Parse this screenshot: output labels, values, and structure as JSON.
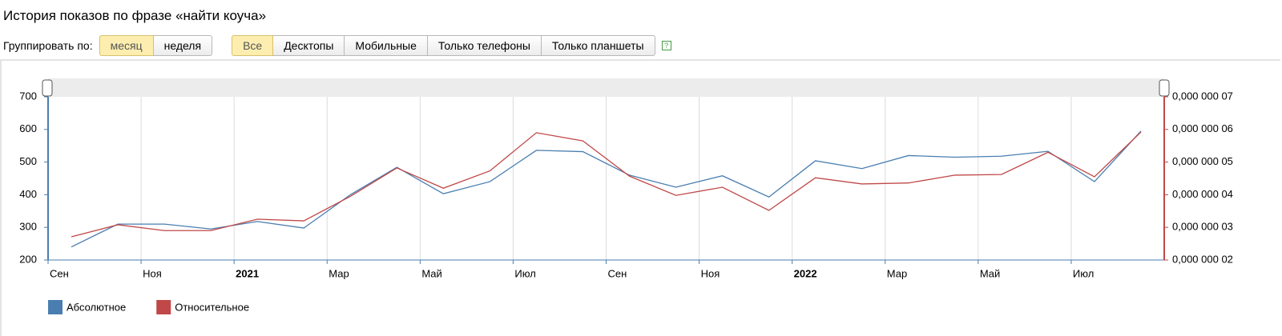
{
  "header": {
    "title": "История показов по фразе «найти коуча»"
  },
  "controls": {
    "group_label": "Группировать по:",
    "group_options": [
      "месяц",
      "неделя"
    ],
    "device_options": [
      "Все",
      "Десктопы",
      "Мобильные",
      "Только телефоны",
      "Только планшеты"
    ],
    "help": "?"
  },
  "chart_data": {
    "type": "line",
    "categories": [
      "Сен",
      null,
      "Ноя",
      null,
      "2021",
      null,
      "Мар",
      null,
      "Май",
      null,
      "Июл",
      null,
      "Сен",
      null,
      "Ноя",
      null,
      "2022",
      null,
      "Мар",
      null,
      "Май",
      null,
      "Июл",
      null
    ],
    "series": [
      {
        "name": "Абсолютное",
        "color": "#4a7eb0",
        "values": [
          240,
          310,
          310,
          295,
          318,
          298,
          400,
          484,
          403,
          440,
          536,
          532,
          460,
          423,
          458,
          393,
          504,
          480,
          520,
          515,
          518,
          533,
          440,
          595
        ]
      },
      {
        "name": "Относительное",
        "color": "#c04848",
        "axis": "y2",
        "values": [
          2.71e-08,
          3.08e-08,
          2.9e-08,
          2.9e-08,
          3.25e-08,
          3.2e-08,
          3.95e-08,
          4.82e-08,
          4.2e-08,
          4.73e-08,
          5.9e-08,
          5.65e-08,
          4.57e-08,
          3.98e-08,
          4.23e-08,
          3.52e-08,
          4.52e-08,
          4.33e-08,
          4.36e-08,
          4.6e-08,
          4.62e-08,
          5.3e-08,
          4.55e-08,
          5.92e-08
        ]
      }
    ],
    "ylim": [
      200,
      700
    ],
    "yticks": [
      200,
      300,
      400,
      500,
      600,
      700
    ],
    "y2lim": [
      2e-08,
      7e-08
    ],
    "y2ticks": [
      {
        "value": 2e-08,
        "label": "0,000 000 02"
      },
      {
        "value": 3e-08,
        "label": "0,000 000 03"
      },
      {
        "value": 4e-08,
        "label": "0,000 000 04"
      },
      {
        "value": 5e-08,
        "label": "0,000 000 05"
      },
      {
        "value": 6e-08,
        "label": "0,000 000 06"
      },
      {
        "value": 7e-08,
        "label": "0,000 000 07"
      }
    ],
    "grid": true
  }
}
